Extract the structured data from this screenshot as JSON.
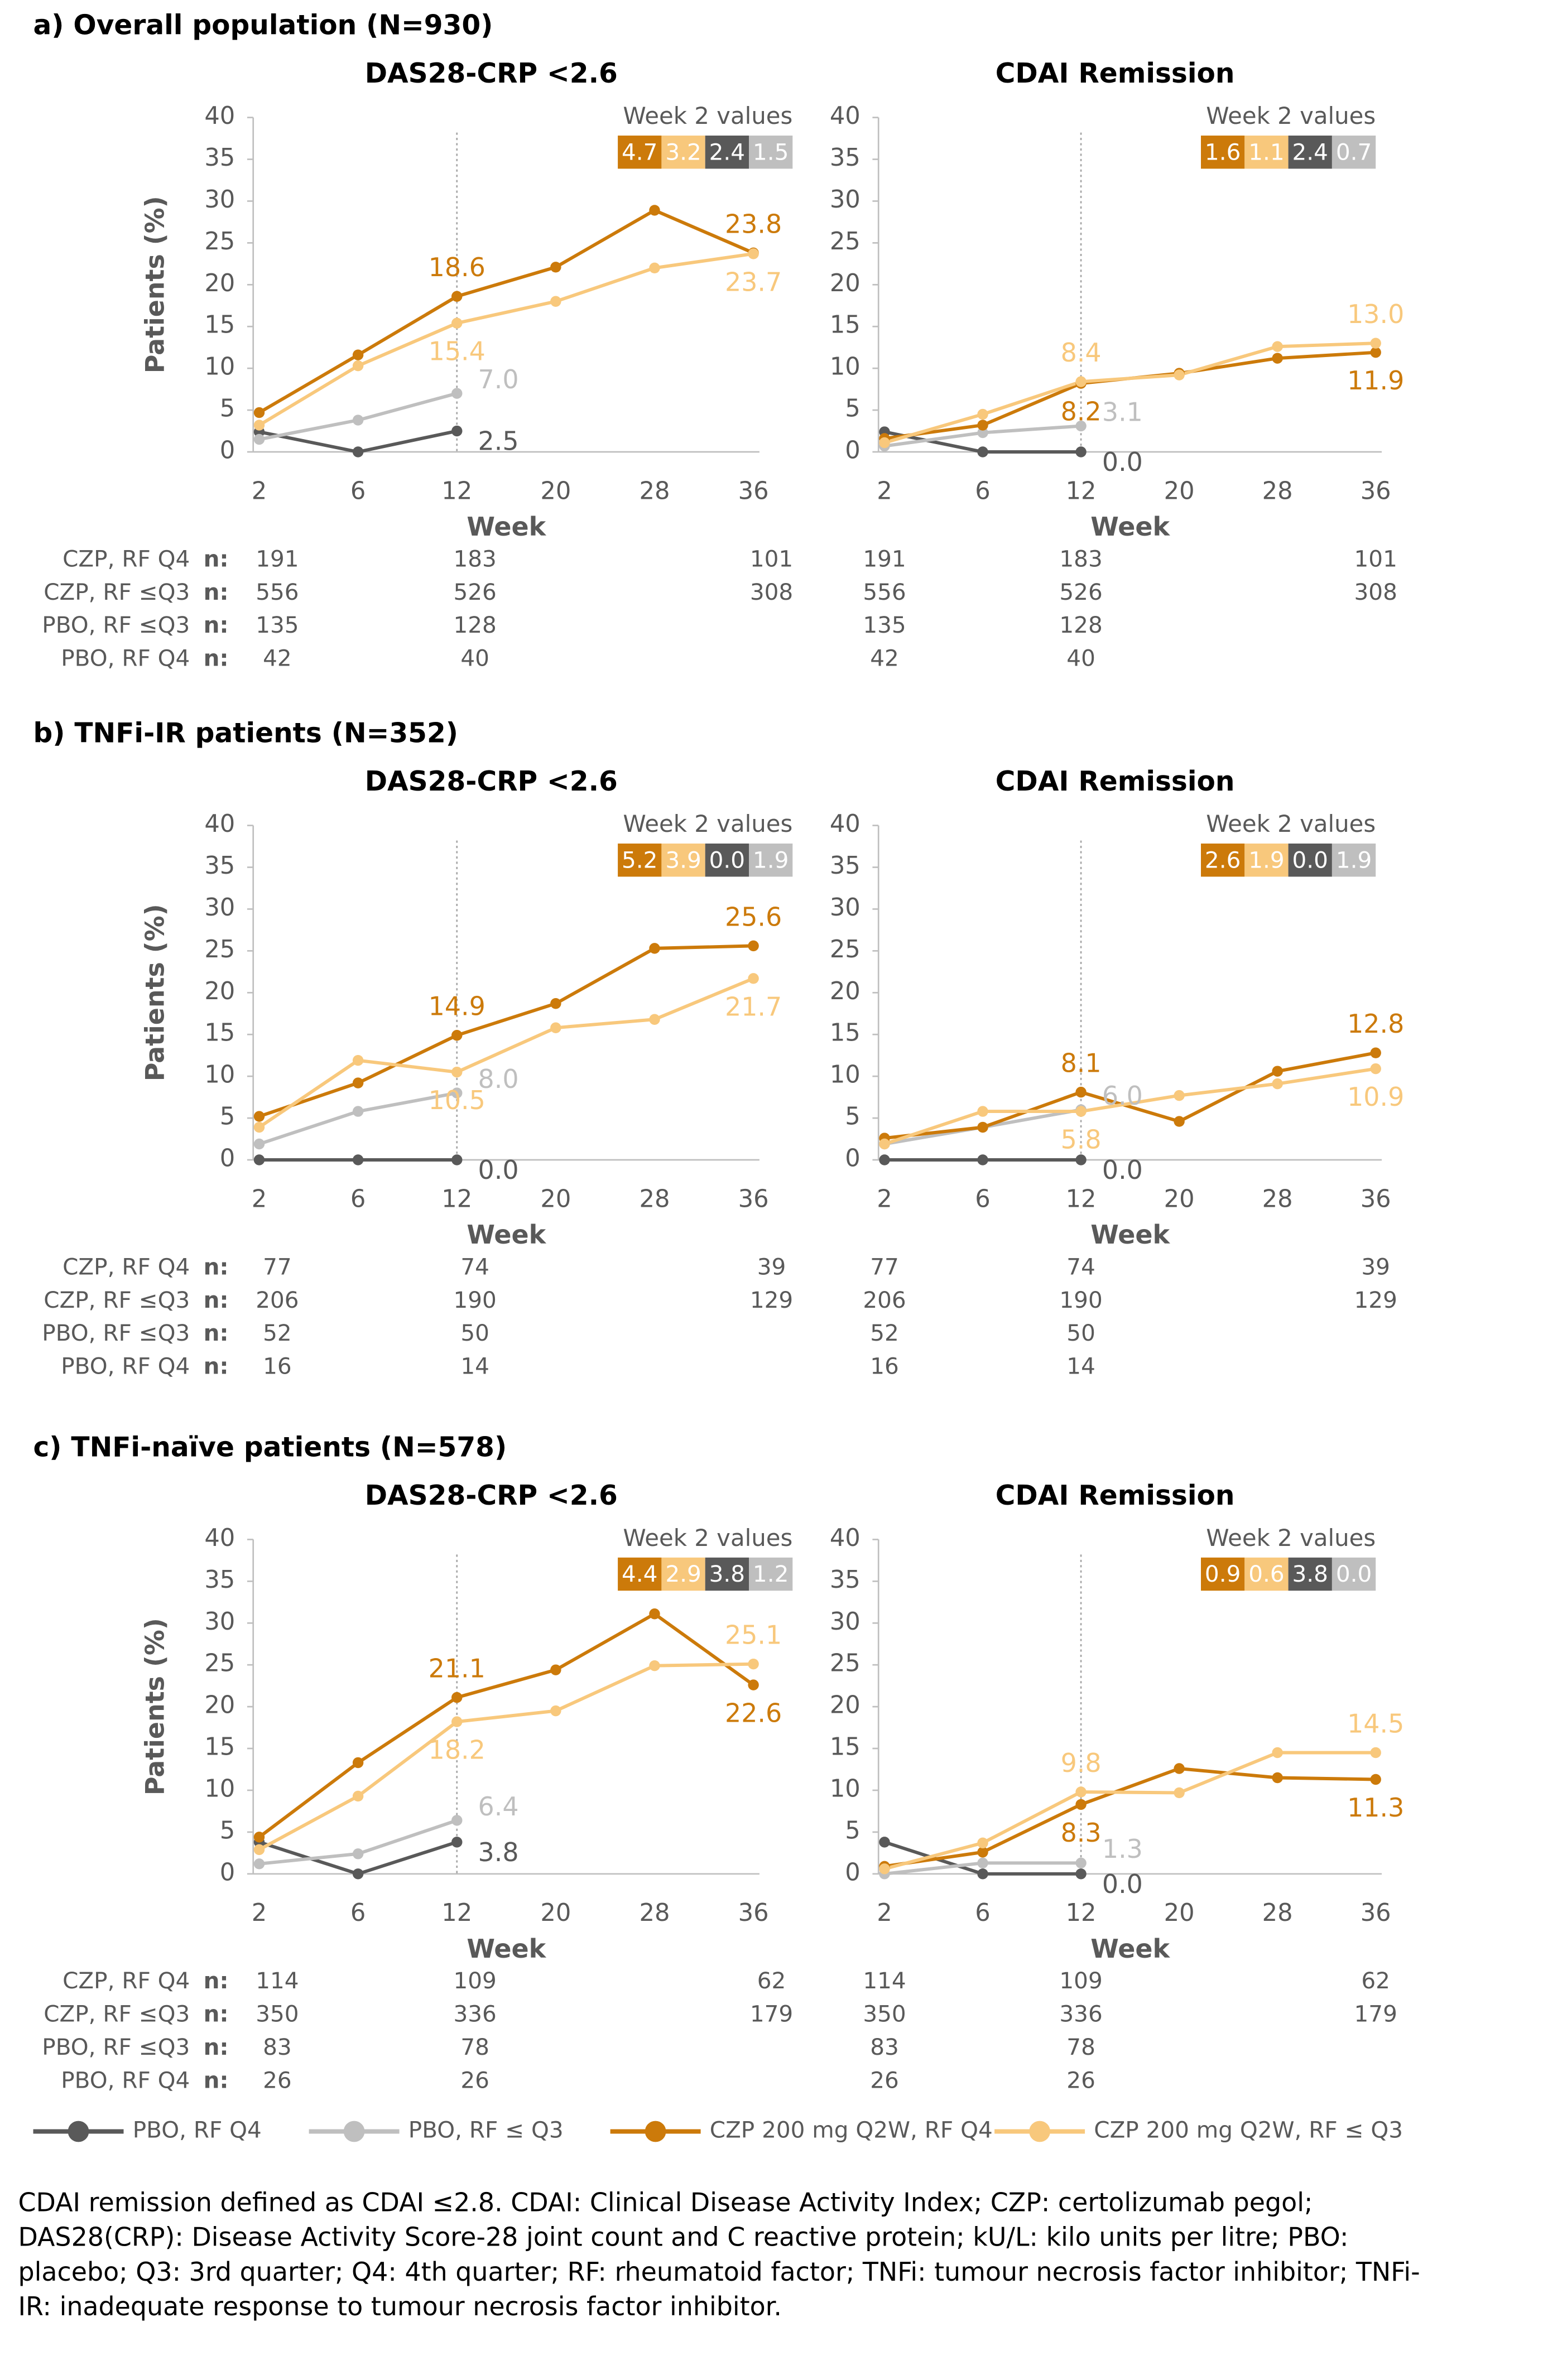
{
  "panels": [
    {
      "title": "a) Overall population (N=930)",
      "n_values": [
        [
          191,
          183,
          101
        ],
        [
          556,
          526,
          308
        ],
        [
          135,
          128
        ],
        [
          42,
          40
        ]
      ]
    },
    {
      "title": "b) TNFi-IR patients (N=352)",
      "n_values": [
        [
          77,
          74,
          39
        ],
        [
          206,
          190,
          129
        ],
        [
          52,
          50
        ],
        [
          16,
          14
        ]
      ]
    },
    {
      "title": "c) TNFi-naïve patients (N=578)",
      "n_values": [
        [
          114,
          109,
          62
        ],
        [
          350,
          336,
          179
        ],
        [
          83,
          78
        ],
        [
          26,
          26
        ]
      ]
    }
  ],
  "n_label": "n:",
  "n_row_labels": [
    "CZP, RF Q4",
    "CZP, RF ≤Q3",
    "PBO, RF ≤Q3",
    "PBO, RF Q4"
  ],
  "legend": [
    {
      "name": "PBO, RF Q4",
      "color": "#595959"
    },
    {
      "name": "PBO, RF ≤ Q3",
      "color": "#bfbfbf"
    },
    {
      "name": "CZP 200 mg Q2W, RF Q4",
      "color": "#cc7a0a"
    },
    {
      "name": "CZP 200 mg Q2W, RF ≤ Q3",
      "color": "#f8c87c"
    }
  ],
  "footnote": "CDAI remission defined as CDAI ≤2.8. CDAI: Clinical Disease Activity Index; CZP: certolizumab pegol; DAS28(CRP): Disease Activity Score-28 joint count and C reactive protein; kU/L: kilo units per litre; PBO: placebo; Q3: 3rd quarter; Q4: 4th quarter; RF: rheumatoid factor; TNFi: tumour necrosis factor inhibitor; TNFi-IR: inadequate response to tumour necrosis factor inhibitor.",
  "chart_data": [
    {
      "type": "line",
      "title": "DAS28-CRP <2.6",
      "ylabel": "Patients (%)",
      "xlabel": "Week",
      "categories": [
        2,
        6,
        12,
        20,
        28,
        36
      ],
      "ylim": [
        0,
        40
      ],
      "yticks": [
        0,
        5,
        10,
        15,
        20,
        25,
        30,
        35,
        40
      ],
      "series": [
        {
          "color": "#595959",
          "values": [
            2.4,
            0,
            2.5,
            null,
            null,
            null
          ],
          "value_labels": [
            null,
            null,
            "2.5",
            null,
            null,
            null
          ]
        },
        {
          "color": "#bfbfbf",
          "values": [
            1.5,
            3.8,
            7.0,
            null,
            null,
            null
          ],
          "value_labels": [
            null,
            null,
            "7.0",
            null,
            null,
            null
          ]
        },
        {
          "color": "#cc7a0a",
          "values": [
            4.7,
            11.6,
            18.6,
            22.1,
            28.9,
            23.8
          ],
          "value_labels": [
            null,
            null,
            "18.6",
            null,
            null,
            "23.8"
          ]
        },
        {
          "color": "#f8c87c",
          "values": [
            3.2,
            10.3,
            15.4,
            18.0,
            22.0,
            23.7
          ],
          "value_labels": [
            null,
            null,
            "15.4",
            null,
            null,
            "23.7"
          ]
        }
      ],
      "week2": {
        "label": "Week 2 values",
        "values": [
          4.7,
          3.2,
          2.4,
          1.5
        ],
        "value_labels": [
          "4.7",
          "3.2",
          "2.4",
          "1.5"
        ],
        "colors": [
          "#cc7a0a",
          "#f8c87c",
          "#595959",
          "#bfbfbf"
        ]
      }
    },
    {
      "type": "line",
      "title": "CDAI Remission",
      "xlabel": "Week",
      "categories": [
        2,
        6,
        12,
        20,
        28,
        36
      ],
      "ylim": [
        0,
        40
      ],
      "yticks": [
        0,
        5,
        10,
        15,
        20,
        25,
        30,
        35,
        40
      ],
      "series": [
        {
          "color": "#595959",
          "values": [
            2.4,
            0,
            0,
            null,
            null,
            null
          ],
          "value_labels": [
            null,
            null,
            "0.0",
            null,
            null,
            null
          ]
        },
        {
          "color": "#bfbfbf",
          "values": [
            0.7,
            2.3,
            3.1,
            null,
            null,
            null
          ],
          "value_labels": [
            null,
            null,
            "3.1",
            null,
            null,
            null
          ]
        },
        {
          "color": "#cc7a0a",
          "values": [
            1.6,
            3.2,
            8.2,
            9.4,
            11.2,
            11.9
          ],
          "value_labels": [
            null,
            null,
            "8.2",
            null,
            null,
            "11.9"
          ]
        },
        {
          "color": "#f8c87c",
          "values": [
            1.1,
            4.5,
            8.4,
            9.2,
            12.6,
            13.0
          ],
          "value_labels": [
            null,
            null,
            "8.4",
            null,
            null,
            "13.0"
          ]
        }
      ],
      "week2": {
        "label": "Week 2 values",
        "values": [
          1.6,
          1.1,
          2.4,
          0.7
        ],
        "value_labels": [
          "1.6",
          "1.1",
          "2.4",
          "0.7"
        ],
        "colors": [
          "#cc7a0a",
          "#f8c87c",
          "#595959",
          "#bfbfbf"
        ]
      }
    },
    {
      "type": "line",
      "title": "DAS28-CRP <2.6",
      "ylabel": "Patients (%)",
      "xlabel": "Week",
      "categories": [
        2,
        6,
        12,
        20,
        28,
        36
      ],
      "ylim": [
        0,
        40
      ],
      "yticks": [
        0,
        5,
        10,
        15,
        20,
        25,
        30,
        35,
        40
      ],
      "series": [
        {
          "color": "#595959",
          "values": [
            0,
            0,
            0,
            null,
            null,
            null
          ],
          "value_labels": [
            null,
            null,
            "0.0",
            null,
            null,
            null
          ]
        },
        {
          "color": "#bfbfbf",
          "values": [
            1.9,
            5.8,
            8.0,
            null,
            null,
            null
          ],
          "value_labels": [
            null,
            null,
            "8.0",
            null,
            null,
            null
          ]
        },
        {
          "color": "#cc7a0a",
          "values": [
            5.2,
            9.2,
            14.9,
            18.7,
            25.3,
            25.6
          ],
          "value_labels": [
            null,
            null,
            "14.9",
            null,
            null,
            "25.6"
          ]
        },
        {
          "color": "#f8c87c",
          "values": [
            3.9,
            11.9,
            10.5,
            15.8,
            16.8,
            21.7
          ],
          "value_labels": [
            null,
            null,
            "10.5",
            null,
            null,
            "21.7"
          ]
        }
      ],
      "week2": {
        "label": "Week 2 values",
        "values": [
          5.2,
          3.9,
          0.0,
          1.9
        ],
        "value_labels": [
          "5.2",
          "3.9",
          "0.0",
          "1.9"
        ],
        "colors": [
          "#cc7a0a",
          "#f8c87c",
          "#595959",
          "#bfbfbf"
        ]
      }
    },
    {
      "type": "line",
      "title": "CDAI Remission",
      "xlabel": "Week",
      "categories": [
        2,
        6,
        12,
        20,
        28,
        36
      ],
      "ylim": [
        0,
        40
      ],
      "yticks": [
        0,
        5,
        10,
        15,
        20,
        25,
        30,
        35,
        40
      ],
      "series": [
        {
          "color": "#595959",
          "values": [
            0,
            0,
            0,
            null,
            null,
            null
          ],
          "value_labels": [
            null,
            null,
            "0.0",
            null,
            null,
            null
          ]
        },
        {
          "color": "#bfbfbf",
          "values": [
            1.9,
            3.9,
            6.0,
            null,
            null,
            null
          ],
          "value_labels": [
            null,
            null,
            "6.0",
            null,
            null,
            null
          ]
        },
        {
          "color": "#cc7a0a",
          "values": [
            2.6,
            3.9,
            8.1,
            4.6,
            10.6,
            12.8
          ],
          "value_labels": [
            null,
            null,
            "8.1",
            null,
            null,
            "12.8"
          ]
        },
        {
          "color": "#f8c87c",
          "values": [
            1.9,
            5.8,
            5.8,
            7.7,
            9.1,
            10.9
          ],
          "value_labels": [
            null,
            null,
            "5.8",
            null,
            null,
            "10.9"
          ]
        }
      ],
      "week2": {
        "label": "Week 2 values",
        "values": [
          2.6,
          1.9,
          0.0,
          1.9
        ],
        "value_labels": [
          "2.6",
          "1.9",
          "0.0",
          "1.9"
        ],
        "colors": [
          "#cc7a0a",
          "#f8c87c",
          "#595959",
          "#bfbfbf"
        ]
      }
    },
    {
      "type": "line",
      "title": "DAS28-CRP <2.6",
      "ylabel": "Patients (%)",
      "xlabel": "Week",
      "categories": [
        2,
        6,
        12,
        20,
        28,
        36
      ],
      "ylim": [
        0,
        40
      ],
      "yticks": [
        0,
        5,
        10,
        15,
        20,
        25,
        30,
        35,
        40
      ],
      "series": [
        {
          "color": "#595959",
          "values": [
            3.8,
            0,
            3.8,
            null,
            null,
            null
          ],
          "value_labels": [
            null,
            null,
            "3.8",
            null,
            null,
            null
          ]
        },
        {
          "color": "#bfbfbf",
          "values": [
            1.2,
            2.4,
            6.4,
            null,
            null,
            null
          ],
          "value_labels": [
            null,
            null,
            "6.4",
            null,
            null,
            null
          ]
        },
        {
          "color": "#cc7a0a",
          "values": [
            4.4,
            13.3,
            21.1,
            24.4,
            31.1,
            22.6
          ],
          "value_labels": [
            null,
            null,
            "21.1",
            null,
            null,
            "22.6"
          ]
        },
        {
          "color": "#f8c87c",
          "values": [
            2.9,
            9.3,
            18.2,
            19.5,
            24.9,
            25.1
          ],
          "value_labels": [
            null,
            null,
            "18.2",
            null,
            null,
            "25.1"
          ]
        }
      ],
      "week2": {
        "label": "Week 2 values",
        "values": [
          4.4,
          2.9,
          3.8,
          1.2
        ],
        "value_labels": [
          "4.4",
          "2.9",
          "3.8",
          "1.2"
        ],
        "colors": [
          "#cc7a0a",
          "#f8c87c",
          "#595959",
          "#bfbfbf"
        ]
      }
    },
    {
      "type": "line",
      "title": "CDAI Remission",
      "xlabel": "Week",
      "categories": [
        2,
        6,
        12,
        20,
        28,
        36
      ],
      "ylim": [
        0,
        40
      ],
      "yticks": [
        0,
        5,
        10,
        15,
        20,
        25,
        30,
        35,
        40
      ],
      "series": [
        {
          "color": "#595959",
          "values": [
            3.8,
            0,
            0,
            null,
            null,
            null
          ],
          "value_labels": [
            null,
            null,
            "0.0",
            null,
            null,
            null
          ]
        },
        {
          "color": "#bfbfbf",
          "values": [
            0.0,
            1.3,
            1.3,
            null,
            null,
            null
          ],
          "value_labels": [
            null,
            null,
            "1.3",
            null,
            null,
            null
          ]
        },
        {
          "color": "#cc7a0a",
          "values": [
            0.9,
            2.6,
            8.3,
            12.6,
            11.5,
            11.3
          ],
          "value_labels": [
            null,
            null,
            "8.3",
            null,
            null,
            "11.3"
          ]
        },
        {
          "color": "#f8c87c",
          "values": [
            0.6,
            3.7,
            9.8,
            9.7,
            14.5,
            14.5
          ],
          "value_labels": [
            null,
            null,
            "9.8",
            null,
            null,
            "14.5"
          ]
        }
      ],
      "week2": {
        "label": "Week 2 values",
        "values": [
          0.9,
          0.6,
          3.8,
          0.0
        ],
        "value_labels": [
          "0.9",
          "0.6",
          "3.8",
          "0.0"
        ],
        "colors": [
          "#cc7a0a",
          "#f8c87c",
          "#595959",
          "#bfbfbf"
        ]
      }
    }
  ]
}
